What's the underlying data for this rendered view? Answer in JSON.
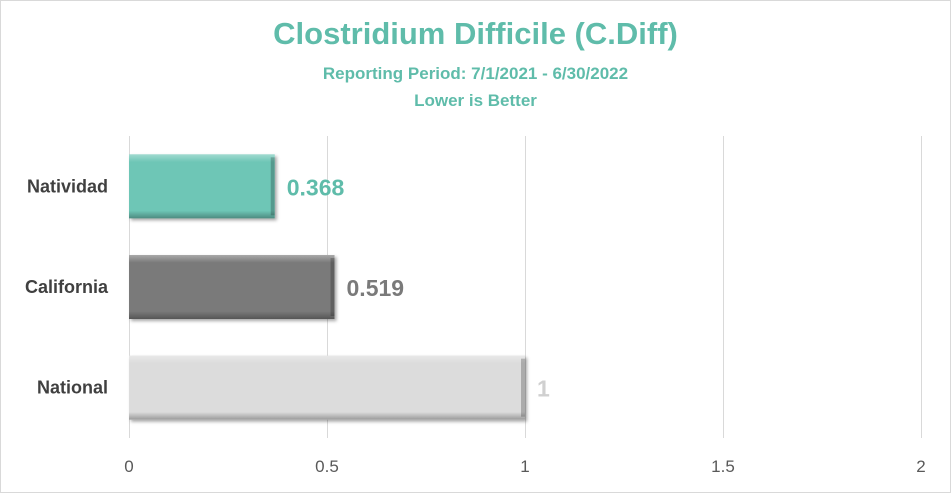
{
  "chart_data": {
    "type": "bar",
    "orientation": "horizontal",
    "title": "Clostridium Difficile (C.Diff)",
    "subtitle_lines": [
      "Reporting Period: 7/1/2021 - 6/30/2022",
      "Lower is Better"
    ],
    "categories": [
      "Natividad",
      "California",
      "National"
    ],
    "values": [
      0.368,
      0.519,
      1
    ],
    "data_labels": [
      "0.368",
      "0.519",
      "1"
    ],
    "bar_colors": [
      "#6ec6b6",
      "#7a7a7a",
      "#dcdcdc"
    ],
    "label_colors": [
      "#5fbcaa",
      "#7a7a7a",
      "#d0d0d0"
    ],
    "xlim": [
      0,
      2
    ],
    "x_ticks": [
      0,
      0.5,
      1,
      1.5,
      2
    ],
    "x_tick_labels": [
      "0",
      "0.5",
      "1",
      "1.5",
      "2"
    ],
    "grid": "vertical",
    "legend": "none"
  }
}
